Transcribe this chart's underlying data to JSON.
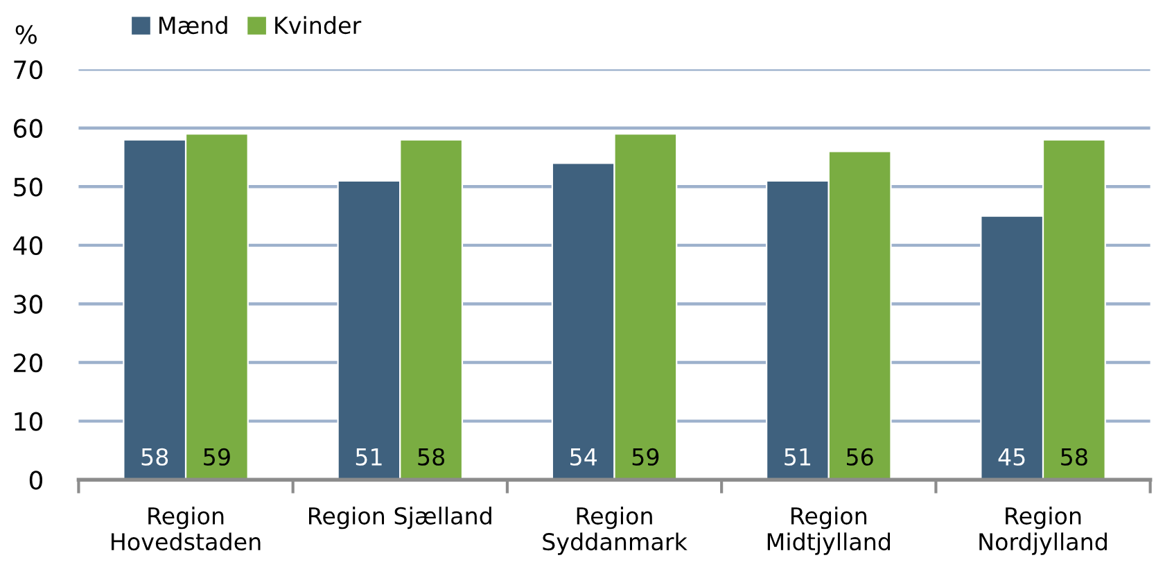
{
  "chart_data": {
    "type": "bar",
    "ylabel": "%",
    "categories": [
      "Region\nHovedstaden",
      "Region Sjælland",
      "Region\nSyddanmark",
      "Region\nMidtjylland",
      "Region\nNordjylland"
    ],
    "series": [
      {
        "name": "Mænd",
        "color": "#3f617e",
        "values": [
          58,
          51,
          54,
          51,
          45
        ]
      },
      {
        "name": "Kvinder",
        "color": "#7aad42",
        "values": [
          59,
          58,
          59,
          56,
          58
        ]
      }
    ],
    "ylim": [
      0,
      70
    ],
    "yticks": [
      0,
      10,
      20,
      30,
      40,
      50,
      60,
      70
    ],
    "grid": "y",
    "legend": "top left",
    "data_labels": true
  }
}
